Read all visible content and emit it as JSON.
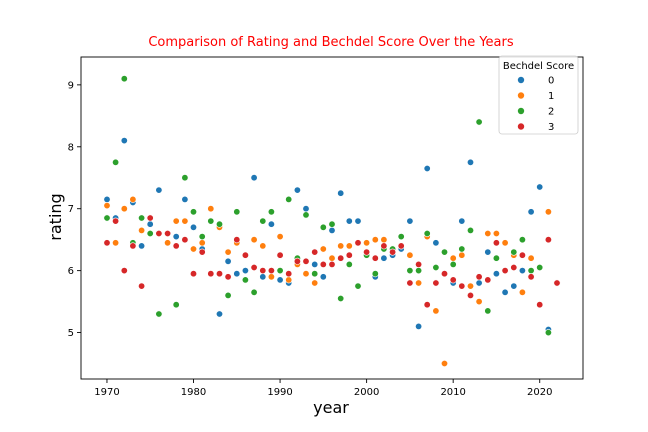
{
  "chart_data": {
    "type": "scatter",
    "title": "Comparison of Rating and Bechdel Score Over the Years",
    "title_color": "#ff0000",
    "xlabel": "year",
    "ylabel": "rating",
    "xlim": [
      1967,
      2025
    ],
    "ylim": [
      4.25,
      9.45
    ],
    "x_ticks": [
      1970,
      1980,
      1990,
      2000,
      2010,
      2020
    ],
    "y_ticks": [
      5,
      6,
      7,
      8,
      9
    ],
    "grid": false,
    "legend": {
      "title": "Bechdel Score",
      "placement": "top-right",
      "entries": [
        "0",
        "1",
        "2",
        "3"
      ]
    },
    "series": [
      {
        "name": "0",
        "color": "#1f77b4",
        "points": [
          [
            1970,
            7.15
          ],
          [
            1971,
            6.85
          ],
          [
            1972,
            8.1
          ],
          [
            1973,
            7.1
          ],
          [
            1974,
            6.4
          ],
          [
            1975,
            6.75
          ],
          [
            1976,
            7.3
          ],
          [
            1977,
            6.6
          ],
          [
            1978,
            6.55
          ],
          [
            1979,
            7.15
          ],
          [
            1980,
            6.7
          ],
          [
            1981,
            6.35
          ],
          [
            1982,
            6.8
          ],
          [
            1983,
            5.3
          ],
          [
            1984,
            6.15
          ],
          [
            1985,
            5.95
          ],
          [
            1986,
            6.0
          ],
          [
            1987,
            7.5
          ],
          [
            1988,
            5.9
          ],
          [
            1989,
            6.75
          ],
          [
            1990,
            5.85
          ],
          [
            1991,
            5.8
          ],
          [
            1992,
            7.3
          ],
          [
            1993,
            7.0
          ],
          [
            1994,
            6.1
          ],
          [
            1995,
            5.9
          ],
          [
            1996,
            6.65
          ],
          [
            1997,
            7.25
          ],
          [
            1998,
            6.8
          ],
          [
            1999,
            6.8
          ],
          [
            2000,
            6.3
          ],
          [
            2001,
            5.9
          ],
          [
            2002,
            6.2
          ],
          [
            2003,
            6.25
          ],
          [
            2004,
            6.35
          ],
          [
            2005,
            6.8
          ],
          [
            2006,
            5.1
          ],
          [
            2007,
            7.65
          ],
          [
            2008,
            6.45
          ],
          [
            2010,
            5.8
          ],
          [
            2011,
            6.8
          ],
          [
            2012,
            7.75
          ],
          [
            2013,
            5.8
          ],
          [
            2014,
            6.3
          ],
          [
            2015,
            5.95
          ],
          [
            2016,
            5.65
          ],
          [
            2017,
            5.75
          ],
          [
            2018,
            6.0
          ],
          [
            2019,
            6.95
          ],
          [
            2020,
            7.35
          ],
          [
            2021,
            5.05
          ]
        ]
      },
      {
        "name": "1",
        "color": "#ff7f0e",
        "points": [
          [
            1970,
            7.05
          ],
          [
            1971,
            6.45
          ],
          [
            1972,
            7.0
          ],
          [
            1973,
            7.15
          ],
          [
            1974,
            6.65
          ],
          [
            1975,
            6.6
          ],
          [
            1976,
            6.6
          ],
          [
            1977,
            6.45
          ],
          [
            1978,
            6.8
          ],
          [
            1979,
            6.8
          ],
          [
            1980,
            6.35
          ],
          [
            1981,
            6.45
          ],
          [
            1982,
            7.0
          ],
          [
            1983,
            6.7
          ],
          [
            1984,
            6.3
          ],
          [
            1985,
            6.45
          ],
          [
            1986,
            6.25
          ],
          [
            1987,
            6.5
          ],
          [
            1988,
            6.4
          ],
          [
            1989,
            5.9
          ],
          [
            1990,
            6.55
          ],
          [
            1991,
            5.85
          ],
          [
            1992,
            6.1
          ],
          [
            1993,
            5.95
          ],
          [
            1994,
            5.8
          ],
          [
            1995,
            6.35
          ],
          [
            1996,
            6.2
          ],
          [
            1997,
            6.4
          ],
          [
            1998,
            6.4
          ],
          [
            1999,
            6.45
          ],
          [
            2000,
            6.45
          ],
          [
            2001,
            6.5
          ],
          [
            2002,
            6.5
          ],
          [
            2003,
            6.35
          ],
          [
            2004,
            6.4
          ],
          [
            2005,
            6.25
          ],
          [
            2006,
            5.8
          ],
          [
            2007,
            6.55
          ],
          [
            2008,
            5.35
          ],
          [
            2009,
            4.5
          ],
          [
            2010,
            6.2
          ],
          [
            2011,
            6.25
          ],
          [
            2012,
            5.75
          ],
          [
            2013,
            5.5
          ],
          [
            2014,
            6.6
          ],
          [
            2015,
            6.6
          ],
          [
            2016,
            6.45
          ],
          [
            2017,
            6.25
          ],
          [
            2018,
            5.65
          ],
          [
            2019,
            6.2
          ],
          [
            2021,
            6.95
          ]
        ]
      },
      {
        "name": "2",
        "color": "#2ca02c",
        "points": [
          [
            1970,
            6.85
          ],
          [
            1971,
            7.75
          ],
          [
            1972,
            9.1
          ],
          [
            1973,
            6.45
          ],
          [
            1974,
            6.85
          ],
          [
            1975,
            6.6
          ],
          [
            1976,
            5.3
          ],
          [
            1977,
            6.6
          ],
          [
            1978,
            5.45
          ],
          [
            1979,
            7.5
          ],
          [
            1980,
            6.95
          ],
          [
            1981,
            6.55
          ],
          [
            1982,
            6.8
          ],
          [
            1983,
            6.75
          ],
          [
            1984,
            5.6
          ],
          [
            1985,
            6.95
          ],
          [
            1986,
            5.85
          ],
          [
            1987,
            5.65
          ],
          [
            1988,
            6.8
          ],
          [
            1989,
            6.95
          ],
          [
            1990,
            6.0
          ],
          [
            1991,
            7.15
          ],
          [
            1992,
            6.2
          ],
          [
            1993,
            6.9
          ],
          [
            1994,
            5.95
          ],
          [
            1995,
            6.7
          ],
          [
            1996,
            6.75
          ],
          [
            1997,
            5.55
          ],
          [
            1998,
            6.1
          ],
          [
            1999,
            5.75
          ],
          [
            2000,
            6.25
          ],
          [
            2001,
            5.95
          ],
          [
            2002,
            6.35
          ],
          [
            2003,
            6.35
          ],
          [
            2004,
            6.55
          ],
          [
            2005,
            6.0
          ],
          [
            2006,
            6.0
          ],
          [
            2007,
            6.6
          ],
          [
            2008,
            6.05
          ],
          [
            2009,
            6.3
          ],
          [
            2010,
            6.1
          ],
          [
            2011,
            6.35
          ],
          [
            2012,
            6.65
          ],
          [
            2013,
            8.4
          ],
          [
            2014,
            5.35
          ],
          [
            2015,
            6.2
          ],
          [
            2016,
            6.0
          ],
          [
            2017,
            6.3
          ],
          [
            2018,
            6.5
          ],
          [
            2019,
            6.0
          ],
          [
            2020,
            6.05
          ],
          [
            2021,
            5.0
          ]
        ]
      },
      {
        "name": "3",
        "color": "#d62728",
        "points": [
          [
            1970,
            6.45
          ],
          [
            1971,
            6.8
          ],
          [
            1972,
            6.0
          ],
          [
            1973,
            6.4
          ],
          [
            1974,
            5.75
          ],
          [
            1975,
            6.85
          ],
          [
            1976,
            6.6
          ],
          [
            1977,
            6.6
          ],
          [
            1978,
            6.4
          ],
          [
            1979,
            6.5
          ],
          [
            1980,
            5.95
          ],
          [
            1981,
            6.3
          ],
          [
            1982,
            5.95
          ],
          [
            1983,
            5.95
          ],
          [
            1984,
            5.9
          ],
          [
            1985,
            6.5
          ],
          [
            1986,
            6.25
          ],
          [
            1987,
            6.05
          ],
          [
            1988,
            6.0
          ],
          [
            1989,
            6.0
          ],
          [
            1990,
            6.25
          ],
          [
            1991,
            5.95
          ],
          [
            1992,
            6.15
          ],
          [
            1993,
            6.15
          ],
          [
            1994,
            6.3
          ],
          [
            1995,
            6.1
          ],
          [
            1996,
            6.1
          ],
          [
            1997,
            6.2
          ],
          [
            1998,
            6.25
          ],
          [
            1999,
            6.45
          ],
          [
            2000,
            6.3
          ],
          [
            2001,
            6.2
          ],
          [
            2002,
            6.4
          ],
          [
            2003,
            6.3
          ],
          [
            2004,
            6.4
          ],
          [
            2005,
            5.8
          ],
          [
            2006,
            6.1
          ],
          [
            2007,
            5.45
          ],
          [
            2008,
            5.8
          ],
          [
            2009,
            5.95
          ],
          [
            2010,
            5.85
          ],
          [
            2011,
            5.75
          ],
          [
            2012,
            5.6
          ],
          [
            2013,
            5.9
          ],
          [
            2014,
            5.85
          ],
          [
            2015,
            6.45
          ],
          [
            2016,
            6.0
          ],
          [
            2017,
            6.05
          ],
          [
            2018,
            6.25
          ],
          [
            2019,
            5.9
          ],
          [
            2020,
            5.45
          ],
          [
            2021,
            6.5
          ],
          [
            2022,
            5.8
          ]
        ]
      }
    ]
  }
}
